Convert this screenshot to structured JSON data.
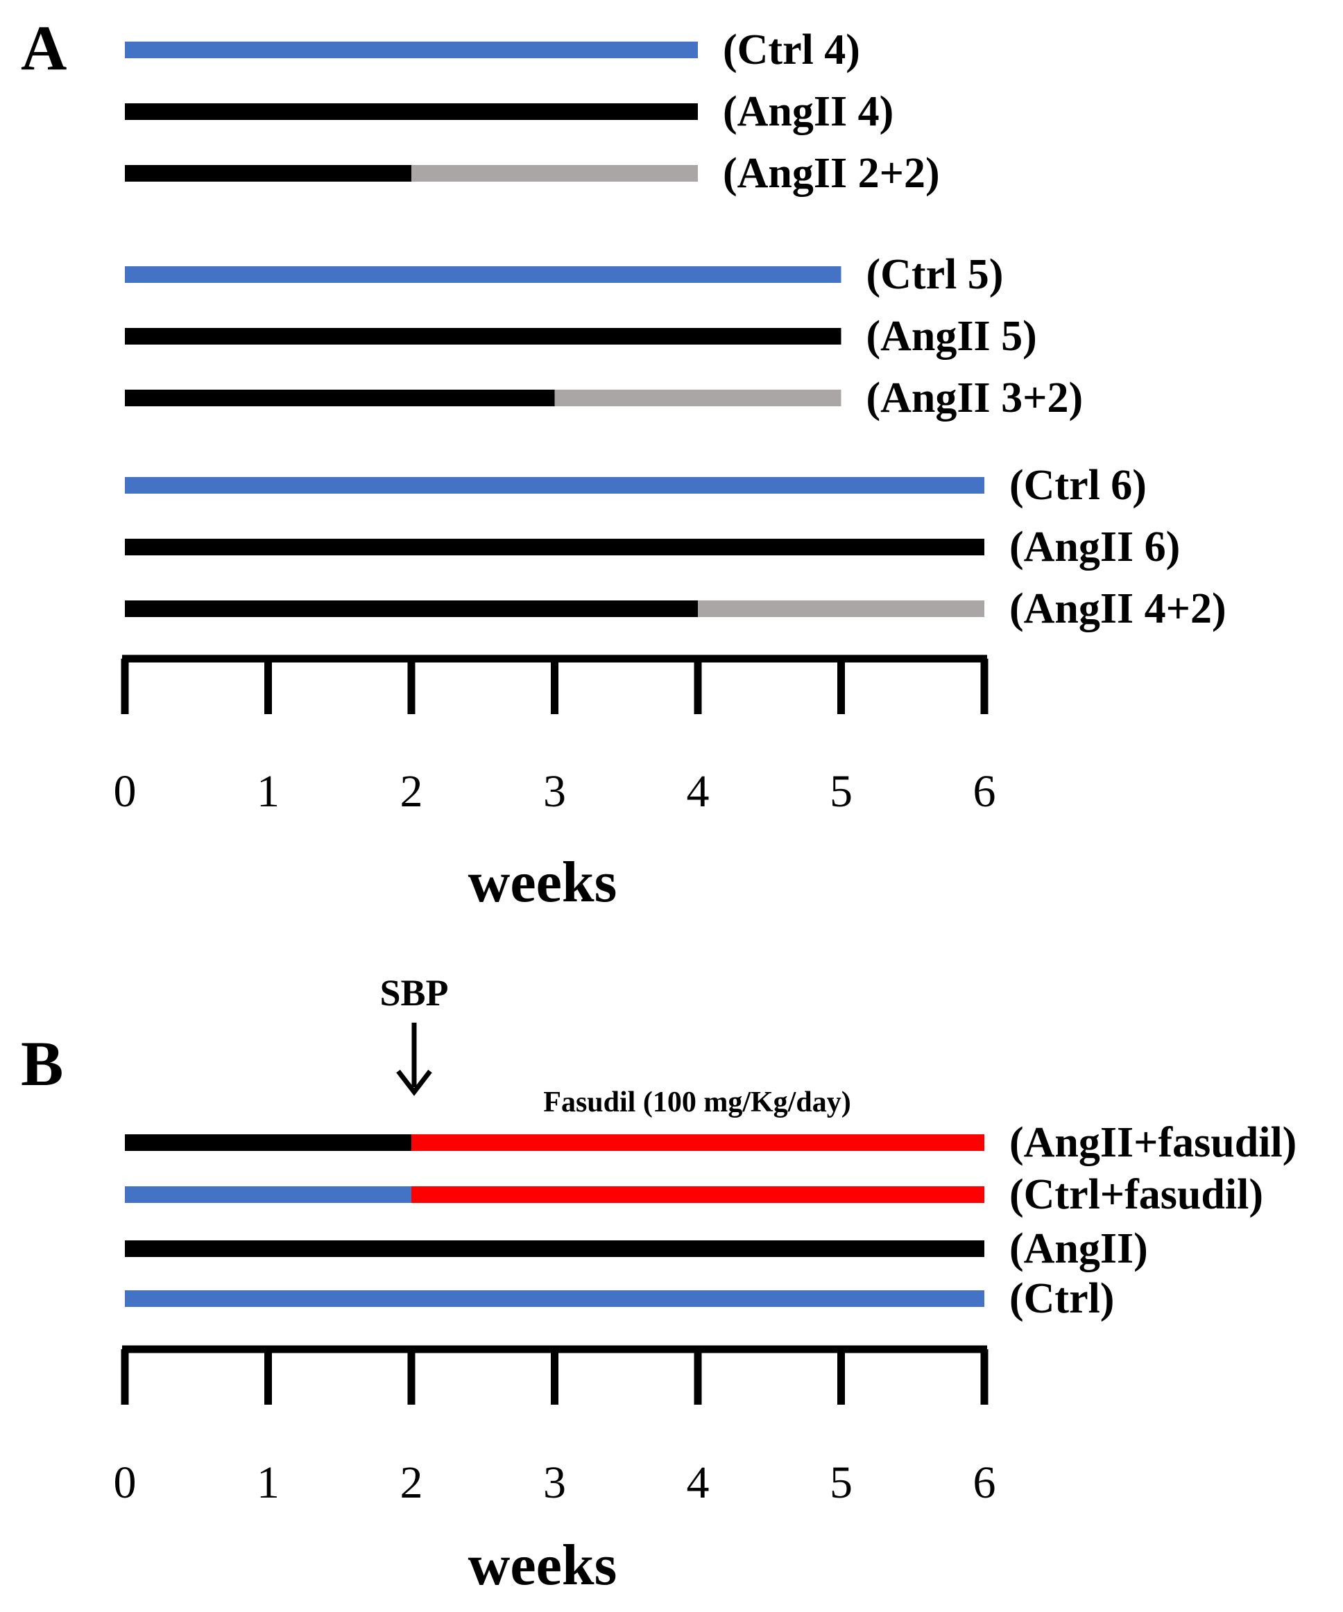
{
  "panelA": {
    "letter": "A",
    "groups": [
      [
        {
          "label": "(Ctrl 4)",
          "segments": [
            {
              "from": 0,
              "to": 4,
              "kind": "control"
            }
          ]
        },
        {
          "label": "(AngII 4)",
          "segments": [
            {
              "from": 0,
              "to": 4,
              "kind": "angii"
            }
          ]
        },
        {
          "label": "(AngII 2+2)",
          "segments": [
            {
              "from": 0,
              "to": 2,
              "kind": "angii"
            },
            {
              "from": 2,
              "to": 4,
              "kind": "recovery"
            }
          ]
        }
      ],
      [
        {
          "label": "(Ctrl 5)",
          "segments": [
            {
              "from": 0,
              "to": 5,
              "kind": "control"
            }
          ]
        },
        {
          "label": "(AngII 5)",
          "segments": [
            {
              "from": 0,
              "to": 5,
              "kind": "angii"
            }
          ]
        },
        {
          "label": "(AngII 3+2)",
          "segments": [
            {
              "from": 0,
              "to": 3,
              "kind": "angii"
            },
            {
              "from": 3,
              "to": 5,
              "kind": "recovery"
            }
          ]
        }
      ],
      [
        {
          "label": "(Ctrl 6)",
          "segments": [
            {
              "from": 0,
              "to": 6,
              "kind": "control"
            }
          ]
        },
        {
          "label": "(AngII 6)",
          "segments": [
            {
              "from": 0,
              "to": 6,
              "kind": "angii"
            }
          ]
        },
        {
          "label": "(AngII 4+2)",
          "segments": [
            {
              "from": 0,
              "to": 4,
              "kind": "angii"
            },
            {
              "from": 4,
              "to": 6,
              "kind": "recovery"
            }
          ]
        }
      ]
    ],
    "axis": {
      "ticks": [
        "0",
        "1",
        "2",
        "3",
        "4",
        "5",
        "6"
      ],
      "title": "weeks"
    }
  },
  "panelB": {
    "letter": "B",
    "marker": {
      "label": "SBP",
      "week": 2
    },
    "drug_label": "Fasudil (100 mg/Kg/day)",
    "rows": [
      {
        "label": "(AngII+fasudil)",
        "segments": [
          {
            "from": 0,
            "to": 2,
            "kind": "angii"
          },
          {
            "from": 2,
            "to": 6,
            "kind": "fasudil"
          }
        ]
      },
      {
        "label": "(Ctrl+fasudil)",
        "segments": [
          {
            "from": 0,
            "to": 2,
            "kind": "control"
          },
          {
            "from": 2,
            "to": 6,
            "kind": "fasudil"
          }
        ]
      },
      {
        "label": "(AngII)",
        "segments": [
          {
            "from": 0,
            "to": 6,
            "kind": "angii"
          }
        ]
      },
      {
        "label": "(Ctrl)",
        "segments": [
          {
            "from": 0,
            "to": 6,
            "kind": "control"
          }
        ]
      }
    ],
    "axis": {
      "ticks": [
        "0",
        "1",
        "2",
        "3",
        "4",
        "5",
        "6"
      ],
      "title": "weeks"
    }
  },
  "colors": {
    "control": "#4472c4",
    "angii": "#000000",
    "recovery": "#aaa6a6",
    "fasudil": "#ff0000",
    "text": "#000000"
  }
}
